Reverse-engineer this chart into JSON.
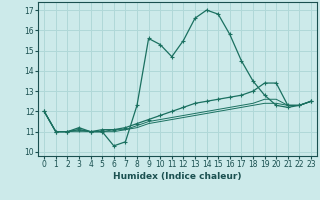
{
  "xlabel": "Humidex (Indice chaleur)",
  "bg_color": "#cceaea",
  "grid_color": "#b0d8d8",
  "line_color": "#1a7060",
  "xlim": [
    -0.5,
    23.5
  ],
  "ylim": [
    9.8,
    17.4
  ],
  "xticks": [
    0,
    1,
    2,
    3,
    4,
    5,
    6,
    7,
    8,
    9,
    10,
    11,
    12,
    13,
    14,
    15,
    16,
    17,
    18,
    19,
    20,
    21,
    22,
    23
  ],
  "yticks": [
    10,
    11,
    12,
    13,
    14,
    15,
    16,
    17
  ],
  "line1_x": [
    0,
    1,
    2,
    3,
    4,
    5,
    6,
    7,
    8,
    9,
    10,
    11,
    12,
    13,
    14,
    15,
    16,
    17,
    18,
    19,
    20,
    21,
    22,
    23
  ],
  "line1_y": [
    12.0,
    11.0,
    11.0,
    11.2,
    11.0,
    11.0,
    10.3,
    10.5,
    12.3,
    15.6,
    15.3,
    14.7,
    15.5,
    16.6,
    17.0,
    16.8,
    15.8,
    14.5,
    13.5,
    12.8,
    12.3,
    12.2,
    12.3,
    12.5
  ],
  "line2_x": [
    0,
    1,
    2,
    3,
    4,
    5,
    6,
    7,
    8,
    9,
    10,
    11,
    12,
    13,
    14,
    15,
    16,
    17,
    18,
    19,
    20,
    21,
    22,
    23
  ],
  "line2_y": [
    12.0,
    11.0,
    11.0,
    11.1,
    11.0,
    11.1,
    11.1,
    11.2,
    11.4,
    11.6,
    11.8,
    12.0,
    12.2,
    12.4,
    12.5,
    12.6,
    12.7,
    12.8,
    13.0,
    13.4,
    13.4,
    12.3,
    12.3,
    12.5
  ],
  "line3_x": [
    0,
    1,
    2,
    3,
    4,
    5,
    6,
    7,
    8,
    9,
    10,
    11,
    12,
    13,
    14,
    15,
    16,
    17,
    18,
    19,
    20,
    21,
    22,
    23
  ],
  "line3_y": [
    12.0,
    11.0,
    11.0,
    11.1,
    11.0,
    11.0,
    11.1,
    11.1,
    11.3,
    11.5,
    11.6,
    11.7,
    11.8,
    11.9,
    12.0,
    12.1,
    12.2,
    12.3,
    12.4,
    12.6,
    12.6,
    12.3,
    12.3,
    12.5
  ],
  "line4_x": [
    0,
    1,
    2,
    3,
    4,
    5,
    6,
    7,
    8,
    9,
    10,
    11,
    12,
    13,
    14,
    15,
    16,
    17,
    18,
    19,
    20,
    21,
    22,
    23
  ],
  "line4_y": [
    12.0,
    11.0,
    11.0,
    11.0,
    11.0,
    11.0,
    11.0,
    11.1,
    11.2,
    11.4,
    11.5,
    11.6,
    11.7,
    11.8,
    11.9,
    12.0,
    12.1,
    12.2,
    12.3,
    12.4,
    12.4,
    12.3,
    12.3,
    12.5
  ]
}
